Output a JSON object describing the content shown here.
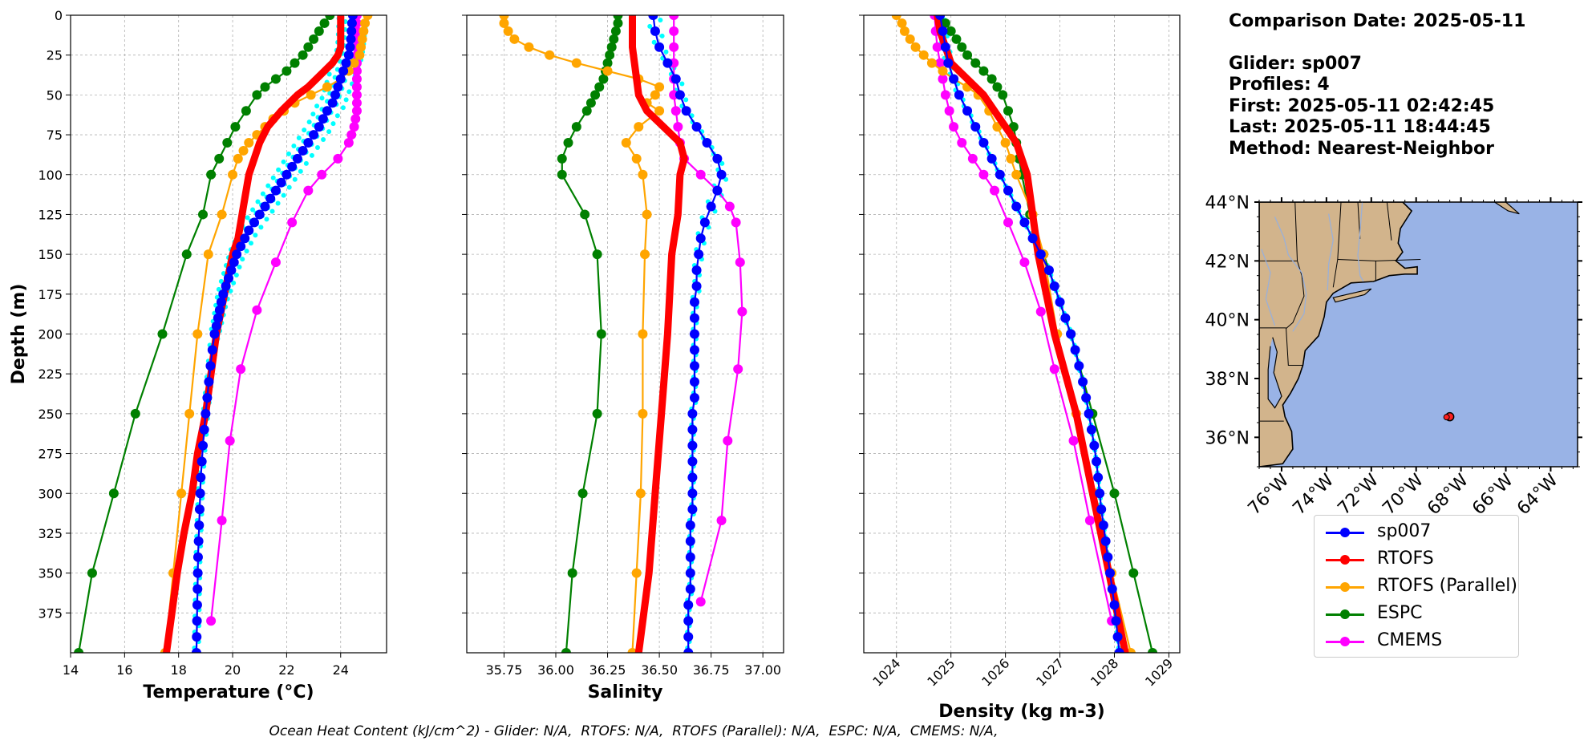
{
  "info": {
    "comparison_date": "Comparison Date: 2025-05-11",
    "glider": "Glider: sp007",
    "profiles": "Profiles: 4",
    "first": "First: 2025-05-11 02:42:45",
    "last": "Last: 2025-05-11 18:44:45",
    "method": "Method: Nearest-Neighbor"
  },
  "footer": "Ocean Heat Content (kJ/cm^2) - Glider: N/A,  RTOFS: N/A,  RTOFS (Parallel): N/A,  ESPC: N/A,  CMEMS: N/A,",
  "colors": {
    "sp007": "#0000ff",
    "RTOFS": "#ff0000",
    "RTOFS (Parallel)": "#ffa500",
    "ESPC": "#008000",
    "CMEMS": "#ff00ff",
    "profile_dots": "#00ffff",
    "land": "#d2b48c",
    "ocean": "#99b3e6"
  },
  "legend": [
    "sp007",
    "RTOFS",
    "RTOFS (Parallel)",
    "ESPC",
    "CMEMS"
  ],
  "map": {
    "lat_labels": [
      "44°N",
      "42°N",
      "40°N",
      "38°N",
      "36°N"
    ],
    "lon_labels": [
      "76°W",
      "74°W",
      "72°W",
      "70°W",
      "68°W",
      "66°W",
      "64°W"
    ],
    "extent": {
      "lon": [
        -77.0,
        -62.8
      ],
      "lat": [
        35.0,
        44.0
      ]
    },
    "glider_position": {
      "lon": -68.5,
      "lat": 36.7
    }
  },
  "chart_data": [
    {
      "type": "line",
      "xlabel": "Temperature (°C)",
      "ylabel": "Depth (m)",
      "xlim": [
        14.0,
        25.7
      ],
      "ylim": [
        400,
        0
      ],
      "xticks": [
        14,
        16,
        18,
        20,
        22,
        24
      ],
      "yticks": [
        0,
        25,
        50,
        75,
        100,
        125,
        150,
        175,
        200,
        225,
        250,
        275,
        300,
        325,
        350,
        375
      ],
      "grid": true,
      "series": [
        {
          "name": "sp007",
          "markers": true,
          "depth": [
            0,
            5,
            10,
            15,
            20,
            25,
            30,
            35,
            40,
            45,
            50,
            55,
            60,
            65,
            70,
            75,
            80,
            85,
            90,
            95,
            100,
            105,
            110,
            115,
            120,
            125,
            130,
            135,
            140,
            145,
            150,
            155,
            160,
            165,
            170,
            175,
            180,
            185,
            190,
            195,
            200,
            210,
            220,
            230,
            240,
            250,
            260,
            270,
            280,
            290,
            300,
            310,
            320,
            330,
            340,
            350,
            360,
            370,
            380,
            390,
            400
          ],
          "values": [
            24.45,
            24.42,
            24.4,
            24.38,
            24.35,
            24.3,
            24.2,
            24.1,
            24.0,
            23.9,
            23.8,
            23.7,
            23.5,
            23.35,
            23.2,
            23.0,
            22.8,
            22.6,
            22.4,
            22.2,
            22.0,
            21.8,
            21.6,
            21.4,
            21.2,
            21.0,
            20.8,
            20.6,
            20.45,
            20.3,
            20.15,
            20.05,
            19.95,
            19.85,
            19.75,
            19.65,
            19.58,
            19.52,
            19.46,
            19.4,
            19.33,
            19.25,
            19.18,
            19.12,
            19.06,
            19.0,
            18.95,
            18.9,
            18.86,
            18.82,
            18.8,
            18.78,
            18.76,
            18.74,
            18.72,
            18.71,
            18.7,
            18.69,
            18.68,
            18.67,
            18.66
          ]
        },
        {
          "name": "RTOFS",
          "markers": false,
          "depth": [
            0,
            10,
            20,
            25,
            30,
            35,
            40,
            45,
            50,
            60,
            70,
            80,
            90,
            100,
            110,
            120,
            130,
            140,
            150,
            175,
            200,
            225,
            250,
            275,
            300,
            325,
            350,
            375,
            400
          ],
          "values": [
            24.0,
            24.0,
            24.0,
            23.9,
            23.7,
            23.4,
            23.1,
            22.8,
            22.4,
            21.8,
            21.3,
            21.0,
            20.8,
            20.6,
            20.5,
            20.4,
            20.3,
            20.2,
            20.0,
            19.7,
            19.4,
            19.2,
            19.0,
            18.7,
            18.5,
            18.2,
            17.95,
            17.75,
            17.55
          ]
        },
        {
          "name": "RTOFS (Parallel)",
          "markers": true,
          "depth": [
            0,
            5,
            10,
            15,
            20,
            25,
            30,
            35,
            40,
            45,
            50,
            55,
            60,
            65,
            70,
            75,
            80,
            85,
            90,
            100,
            125,
            150,
            200,
            250,
            300,
            350,
            400
          ],
          "values": [
            25.0,
            24.9,
            24.85,
            24.8,
            24.75,
            24.7,
            24.5,
            24.3,
            24.0,
            23.5,
            22.9,
            22.3,
            21.9,
            21.5,
            21.2,
            20.9,
            20.6,
            20.4,
            20.2,
            20.0,
            19.6,
            19.1,
            18.7,
            18.4,
            18.1,
            17.8,
            17.5
          ]
        },
        {
          "name": "ESPC",
          "markers": true,
          "depth": [
            0,
            5,
            10,
            15,
            20,
            25,
            30,
            35,
            40,
            45,
            50,
            60,
            70,
            80,
            90,
            100,
            125,
            150,
            200,
            250,
            300,
            350,
            400
          ],
          "values": [
            23.6,
            23.4,
            23.2,
            23.0,
            22.8,
            22.6,
            22.3,
            22.0,
            21.6,
            21.2,
            20.9,
            20.5,
            20.1,
            19.8,
            19.5,
            19.2,
            18.9,
            18.3,
            17.4,
            16.4,
            15.6,
            14.8,
            14.3
          ]
        },
        {
          "name": "CMEMS",
          "markers": true,
          "depth": [
            0,
            5,
            10,
            15,
            20,
            25,
            30,
            35,
            40,
            45,
            50,
            55,
            60,
            65,
            70,
            75,
            80,
            90,
            100,
            110,
            130,
            155,
            185,
            222,
            267,
            317,
            380
          ],
          "values": [
            24.6,
            24.6,
            24.6,
            24.6,
            24.6,
            24.6,
            24.6,
            24.6,
            24.6,
            24.6,
            24.6,
            24.6,
            24.6,
            24.55,
            24.5,
            24.4,
            24.3,
            23.9,
            23.3,
            22.8,
            22.2,
            21.6,
            20.9,
            20.3,
            19.9,
            19.6,
            19.2
          ]
        }
      ]
    },
    {
      "type": "line",
      "xlabel": "Salinity",
      "ylabel": "",
      "xlim": [
        35.57,
        37.1
      ],
      "ylim": [
        400,
        0
      ],
      "xticks": [
        35.75,
        36.0,
        36.25,
        36.5,
        36.75,
        37.0
      ],
      "xtick_labels": [
        "35.75",
        "36.00",
        "36.25",
        "36.50",
        "36.75",
        "37.00"
      ],
      "grid": true,
      "series": [
        {
          "name": "sp007",
          "markers": true,
          "depth": [
            0,
            10,
            20,
            30,
            40,
            50,
            60,
            70,
            80,
            90,
            100,
            110,
            120,
            130,
            140,
            150,
            160,
            170,
            180,
            190,
            200,
            210,
            220,
            230,
            240,
            250,
            260,
            270,
            280,
            290,
            300,
            310,
            320,
            330,
            340,
            350,
            360,
            370,
            380,
            390,
            400
          ],
          "values": [
            36.47,
            36.48,
            36.5,
            36.54,
            36.58,
            36.6,
            36.63,
            36.68,
            36.73,
            36.78,
            36.8,
            36.78,
            36.75,
            36.72,
            36.7,
            36.69,
            36.68,
            36.68,
            36.67,
            36.67,
            36.67,
            36.67,
            36.67,
            36.67,
            36.67,
            36.66,
            36.66,
            36.66,
            36.66,
            36.66,
            36.66,
            36.66,
            36.65,
            36.65,
            36.65,
            36.65,
            36.65,
            36.64,
            36.64,
            36.64,
            36.64
          ]
        },
        {
          "name": "RTOFS",
          "markers": false,
          "depth": [
            0,
            10,
            20,
            30,
            40,
            50,
            60,
            70,
            80,
            90,
            100,
            125,
            150,
            175,
            200,
            250,
            300,
            350,
            400
          ],
          "values": [
            36.37,
            36.37,
            36.37,
            36.38,
            36.39,
            36.4,
            36.44,
            36.52,
            36.6,
            36.62,
            36.6,
            36.59,
            36.56,
            36.55,
            36.54,
            36.51,
            36.48,
            36.45,
            36.4
          ]
        },
        {
          "name": "RTOFS (Parallel)",
          "markers": true,
          "depth": [
            0,
            5,
            10,
            15,
            20,
            25,
            30,
            35,
            40,
            45,
            50,
            55,
            60,
            70,
            80,
            90,
            100,
            125,
            150,
            200,
            250,
            300,
            350,
            400
          ],
          "values": [
            35.75,
            35.75,
            35.77,
            35.8,
            35.87,
            35.97,
            36.1,
            36.25,
            36.4,
            36.5,
            36.48,
            36.44,
            36.5,
            36.4,
            36.34,
            36.39,
            36.42,
            36.44,
            36.43,
            36.42,
            36.42,
            36.41,
            36.39,
            36.37
          ]
        },
        {
          "name": "ESPC",
          "markers": true,
          "depth": [
            0,
            5,
            10,
            15,
            20,
            25,
            30,
            35,
            40,
            45,
            50,
            55,
            60,
            70,
            80,
            90,
            100,
            125,
            150,
            200,
            250,
            300,
            350,
            400
          ],
          "values": [
            36.3,
            36.3,
            36.29,
            36.28,
            36.27,
            36.26,
            36.25,
            36.24,
            36.23,
            36.21,
            36.19,
            36.17,
            36.15,
            36.1,
            36.06,
            36.03,
            36.03,
            36.14,
            36.2,
            36.22,
            36.2,
            36.13,
            36.08,
            36.05
          ]
        },
        {
          "name": "CMEMS",
          "markers": true,
          "depth": [
            0,
            10,
            20,
            30,
            40,
            50,
            60,
            70,
            80,
            90,
            100,
            110,
            120,
            130,
            155,
            186,
            222,
            267,
            317,
            368
          ],
          "values": [
            36.57,
            36.57,
            36.57,
            36.57,
            36.57,
            36.57,
            36.58,
            36.59,
            36.6,
            36.62,
            36.7,
            36.78,
            36.84,
            36.87,
            36.89,
            36.9,
            36.88,
            36.83,
            36.8,
            36.7
          ]
        }
      ]
    },
    {
      "type": "line",
      "xlabel": "Density (kg m-3)",
      "ylabel": "",
      "xlim": [
        1023.4,
        1029.2
      ],
      "ylim": [
        400,
        0
      ],
      "xticks": [
        1024,
        1025,
        1026,
        1027,
        1028,
        1029
      ],
      "grid": true,
      "series": [
        {
          "name": "sp007",
          "markers": true,
          "depth": [
            0,
            10,
            20,
            30,
            40,
            50,
            60,
            70,
            80,
            90,
            100,
            110,
            120,
            130,
            140,
            150,
            160,
            170,
            180,
            190,
            200,
            210,
            220,
            230,
            240,
            250,
            260,
            270,
            280,
            290,
            300,
            310,
            320,
            330,
            340,
            350,
            360,
            370,
            380,
            390,
            400
          ],
          "values": [
            1024.8,
            1024.85,
            1024.9,
            1024.95,
            1025.05,
            1025.15,
            1025.3,
            1025.45,
            1025.6,
            1025.75,
            1025.9,
            1026.05,
            1026.2,
            1026.35,
            1026.5,
            1026.65,
            1026.8,
            1026.9,
            1027.0,
            1027.1,
            1027.2,
            1027.28,
            1027.35,
            1027.42,
            1027.48,
            1027.53,
            1027.58,
            1027.63,
            1027.67,
            1027.7,
            1027.73,
            1027.76,
            1027.8,
            1027.84,
            1027.88,
            1027.92,
            1027.96,
            1028.0,
            1028.03,
            1028.06,
            1028.09
          ]
        },
        {
          "name": "RTOFS",
          "markers": false,
          "depth": [
            0,
            10,
            20,
            30,
            40,
            50,
            60,
            70,
            80,
            90,
            100,
            125,
            150,
            175,
            200,
            250,
            300,
            350,
            400
          ],
          "values": [
            1024.75,
            1024.8,
            1024.9,
            1025.0,
            1025.3,
            1025.6,
            1025.8,
            1026.0,
            1026.2,
            1026.3,
            1026.4,
            1026.5,
            1026.6,
            1026.75,
            1026.9,
            1027.3,
            1027.6,
            1027.9,
            1028.2
          ]
        },
        {
          "name": "RTOFS (Parallel)",
          "markers": true,
          "depth": [
            0,
            5,
            10,
            15,
            20,
            25,
            30,
            35,
            40,
            45,
            50,
            60,
            70,
            80,
            90,
            100,
            125,
            150,
            200,
            250,
            300,
            350,
            400
          ],
          "values": [
            1024.0,
            1024.1,
            1024.15,
            1024.25,
            1024.35,
            1024.5,
            1024.65,
            1024.85,
            1025.05,
            1025.3,
            1025.5,
            1025.7,
            1025.85,
            1026.0,
            1026.1,
            1026.2,
            1026.5,
            1026.7,
            1026.95,
            1027.3,
            1027.65,
            1027.95,
            1028.3
          ]
        },
        {
          "name": "ESPC",
          "markers": true,
          "depth": [
            0,
            5,
            10,
            15,
            20,
            25,
            30,
            35,
            40,
            45,
            50,
            60,
            70,
            80,
            90,
            100,
            125,
            150,
            200,
            250,
            300,
            350,
            400
          ],
          "values": [
            1024.8,
            1024.9,
            1025.0,
            1025.1,
            1025.2,
            1025.3,
            1025.45,
            1025.6,
            1025.75,
            1025.85,
            1025.95,
            1026.05,
            1026.15,
            1026.2,
            1026.25,
            1026.3,
            1026.45,
            1026.7,
            1027.2,
            1027.6,
            1028.0,
            1028.35,
            1028.7
          ]
        },
        {
          "name": "CMEMS",
          "markers": true,
          "depth": [
            0,
            10,
            20,
            30,
            40,
            50,
            60,
            70,
            80,
            90,
            100,
            110,
            130,
            155,
            186,
            222,
            267,
            317,
            380
          ],
          "values": [
            1024.7,
            1024.72,
            1024.75,
            1024.8,
            1024.85,
            1024.9,
            1024.97,
            1025.05,
            1025.2,
            1025.4,
            1025.6,
            1025.8,
            1026.05,
            1026.35,
            1026.65,
            1026.9,
            1027.25,
            1027.55,
            1027.95
          ]
        }
      ]
    }
  ]
}
